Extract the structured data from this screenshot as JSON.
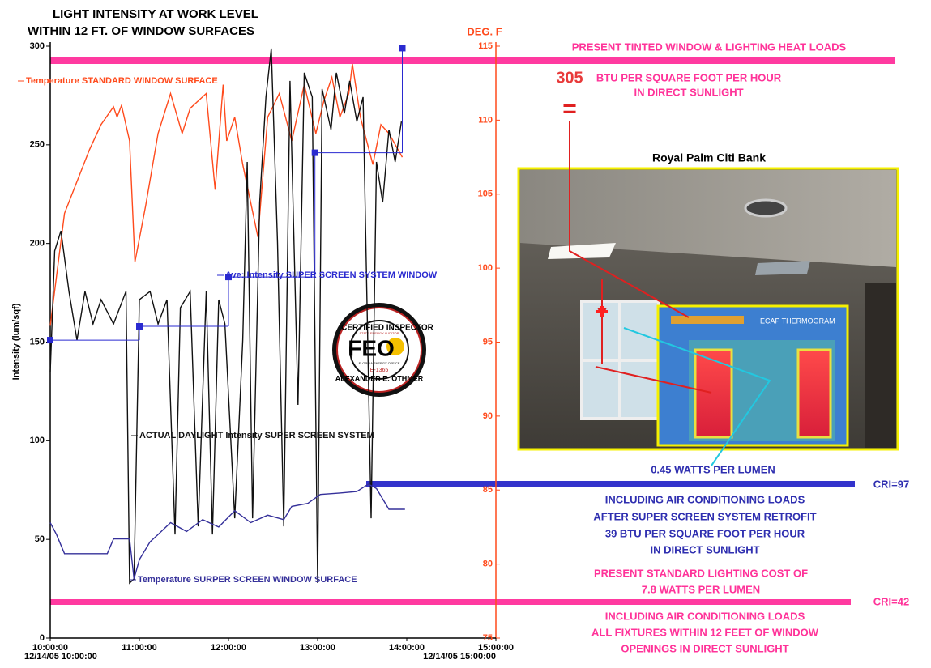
{
  "chart_data": {
    "type": "line",
    "title": [
      "LIGHT INTENSITY  AT WORK LEVEL",
      "WITHIN 12 FT. OF WINDOW SURFACES"
    ],
    "ylabel": "Intensity (lum/sqf)",
    "y2label": "DEG. F",
    "xlim": [
      10,
      15
    ],
    "xticks": [
      {
        "value": 10,
        "label": "10:00:00"
      },
      {
        "value": 11,
        "label": "11:00:00"
      },
      {
        "value": 12,
        "label": "12:00:00"
      },
      {
        "value": 13,
        "label": "13:00:00"
      },
      {
        "value": 14,
        "label": "14:00:00"
      },
      {
        "value": 15,
        "label": "15:00:00"
      }
    ],
    "x_date_labels": [
      "12/14/05 10:00:00",
      "12/14/05 15:00:00"
    ],
    "ylim": [
      0,
      300
    ],
    "yticks": [
      0,
      50,
      100,
      150,
      200,
      250,
      300
    ],
    "y2lim": [
      75,
      115
    ],
    "y2ticks": [
      75,
      80,
      85,
      90,
      95,
      100,
      105,
      110,
      115
    ],
    "series": [
      {
        "name": "Temperature STANDARD WINDOW  SURFACE",
        "color": "#ff4a1c",
        "axis": "y2",
        "x": [
          10.0,
          10.16,
          10.44,
          10.57,
          10.71,
          10.75,
          10.8,
          10.89,
          10.95,
          11.07,
          11.21,
          11.35,
          11.48,
          11.57,
          11.75,
          11.85,
          11.94,
          11.98,
          12.07,
          12.16,
          12.33,
          12.44,
          12.57,
          12.71,
          12.85,
          12.98,
          13.07,
          13.16,
          13.25,
          13.35,
          13.39,
          13.48,
          13.62,
          13.71,
          13.8,
          13.95
        ],
        "values": [
          96.1,
          103.7,
          108.0,
          109.7,
          110.9,
          110.2,
          111.0,
          108.6,
          100.4,
          104.2,
          109.1,
          111.8,
          109.1,
          110.8,
          111.8,
          105.3,
          112.4,
          108.6,
          110.2,
          107.0,
          102.1,
          110.2,
          111.8,
          108.6,
          112.4,
          109.1,
          111.3,
          112.9,
          110.2,
          111.8,
          113.8,
          110.2,
          107.0,
          109.7,
          109.1,
          107.5
        ]
      },
      {
        "name": "ACTUAL DAYLIGHT Intensity SUPER SCREEN SYSTEM",
        "color": "#111111",
        "axis": "y",
        "x": [
          10.0,
          10.05,
          10.12,
          10.21,
          10.3,
          10.39,
          10.48,
          10.57,
          10.71,
          10.85,
          10.89,
          10.94,
          11.0,
          11.12,
          11.21,
          11.31,
          11.4,
          11.46,
          11.57,
          11.66,
          11.75,
          11.82,
          11.89,
          11.96,
          12.07,
          12.16,
          12.21,
          12.27,
          12.35,
          12.42,
          12.48,
          12.55,
          12.62,
          12.69,
          12.78,
          12.85,
          12.94,
          13.0,
          13.05,
          13.15,
          13.21,
          13.3,
          13.36,
          13.44,
          13.51,
          13.6,
          13.66,
          13.73,
          13.8,
          13.87,
          13.94
        ],
        "values": [
          134.6,
          196.2,
          206.4,
          175.7,
          151.0,
          175.7,
          159.2,
          171.5,
          159.2,
          175.7,
          27.9,
          30.0,
          171.5,
          175.7,
          159.2,
          171.5,
          52.5,
          167.4,
          175.7,
          56.6,
          175.7,
          52.5,
          171.5,
          159.2,
          60.7,
          151.0,
          241.3,
          60.7,
          220.8,
          274.2,
          298.8,
          200.3,
          56.6,
          282.4,
          118.2,
          286.5,
          274.2,
          27.9,
          278.3,
          257.7,
          286.5,
          265.9,
          282.4,
          261.8,
          274.2,
          60.7,
          241.3,
          220.8,
          257.7,
          241.3,
          261.8
        ]
      },
      {
        "name": "Temperature  SURPER SCREEN WINDOW SURFACE",
        "color": "#35309a",
        "axis": "y2",
        "x": [
          10.0,
          10.07,
          10.16,
          10.64,
          10.71,
          10.89,
          10.94,
          11.0,
          11.12,
          11.21,
          11.35,
          11.53,
          11.71,
          11.89,
          12.07,
          12.25,
          12.44,
          12.62,
          12.71,
          12.89,
          13.03,
          13.25,
          13.44,
          13.57,
          13.66,
          13.8,
          13.98
        ],
        "values": [
          82.8,
          82.0,
          80.7,
          80.7,
          81.7,
          81.7,
          79.0,
          80.3,
          81.5,
          82.0,
          82.8,
          82.2,
          83.0,
          82.5,
          83.6,
          82.8,
          83.3,
          83.0,
          83.9,
          84.1,
          84.7,
          84.8,
          84.9,
          85.4,
          85.1,
          83.7,
          83.7
        ]
      },
      {
        "name": "Ave: Intensity  SUPER SCREEN SYSTEM WINDOW",
        "color": "#2a2ad0",
        "axis": "y",
        "step": true,
        "marker": "square",
        "x": [
          10.0,
          11.0,
          12.0,
          12.97,
          13.95
        ],
        "values": [
          151,
          158,
          183,
          246,
          299
        ]
      }
    ]
  },
  "annotations": {
    "heat_title": "PRESENT TINTED WINDOW & LIGHTING HEAT LOADS",
    "heat_value": "305",
    "heat_unit": [
      "BTU PER SQUARE FOOT PER HOUR",
      "IN DIRECT SUNLIGHT"
    ],
    "equals": "=",
    "photo_title": "Royal Palm Citi Bank",
    "thermogram": "ECAP THERMOGRAM",
    "new_cost": "0.45 WATTS PER LUMEN",
    "new_cri": "CRI=97",
    "new_notes": [
      "INCLUDING AIR CONDITIONING LOADS",
      "AFTER SUPER SCREEN SYSTEM RETROFIT",
      "39 BTU PER SQUARE FOOT PER HOUR",
      "IN DIRECT SUNLIGHT"
    ],
    "old_cost": [
      "PRESENT STANDARD LIGHTING COST OF",
      "7.8 WATTS PER LUMEN"
    ],
    "old_cri": "CRI=42",
    "old_notes": [
      "INCLUDING AIR CONDITIONING LOADS",
      "ALL FIXTURES WITHIN 12 FEET OF WINDOW",
      "OPENINGS IN DIRECT SUNLIGHT"
    ]
  },
  "seal": {
    "top": "CERTIFIED INSPECTOR",
    "center": "FEO",
    "bottom": "ALEXANDER E. OTHMER",
    "small": [
      "STATE ENERGY AUDITOR",
      "FLORIDA ENERGY OFFICE",
      "E-1365"
    ]
  }
}
